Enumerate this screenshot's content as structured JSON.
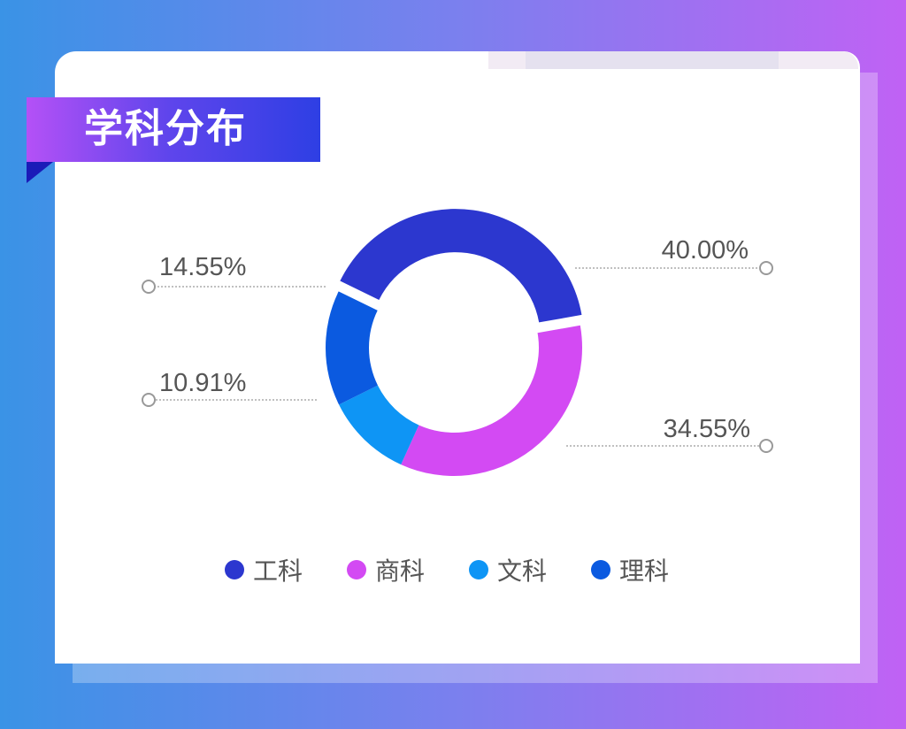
{
  "title": "学科分布",
  "chart_data": {
    "type": "pie",
    "categories": [
      "工科",
      "商科",
      "文科",
      "理科"
    ],
    "values": [
      40.0,
      34.55,
      10.91,
      14.55
    ],
    "labels": [
      "40.00%",
      "34.55%",
      "10.91%",
      "14.55%"
    ],
    "colors": [
      "#2c37cf",
      "#d34af3",
      "#0e95f5",
      "#0b5ae0"
    ]
  },
  "legend": [
    {
      "label": "工科",
      "color": "#2c37cf"
    },
    {
      "label": "商科",
      "color": "#d34af3"
    },
    {
      "label": "文科",
      "color": "#0e95f5"
    },
    {
      "label": "理科",
      "color": "#0b5ae0"
    }
  ]
}
